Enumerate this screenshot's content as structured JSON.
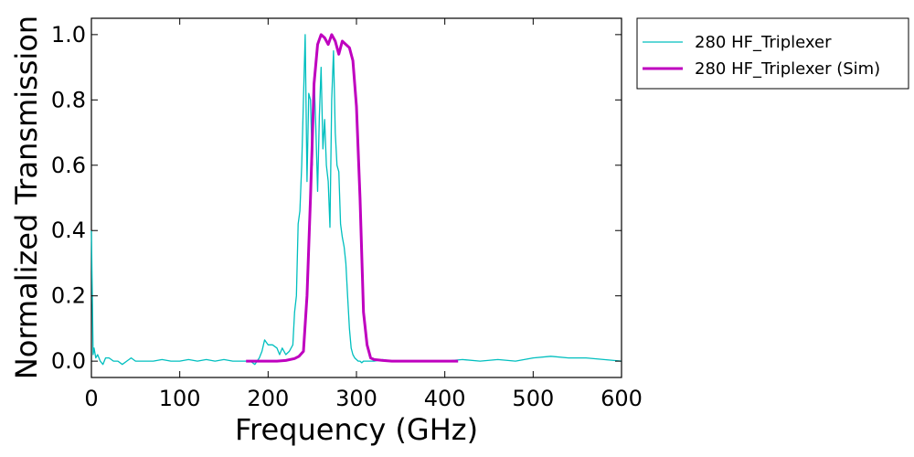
{
  "chart_data": {
    "type": "line",
    "title": "",
    "xlabel": "Frequency (GHz)",
    "ylabel": "Normalized Transmission",
    "xlim": [
      0,
      600
    ],
    "ylim": [
      -0.05,
      1.05
    ],
    "xticks": [
      0,
      100,
      200,
      300,
      400,
      500,
      600
    ],
    "xtick_labels": [
      "0",
      "100",
      "200",
      "300",
      "400",
      "500",
      "600"
    ],
    "yticks": [
      0.0,
      0.2,
      0.4,
      0.6,
      0.8,
      1.0
    ],
    "ytick_labels": [
      "0.0",
      "0.2",
      "0.4",
      "0.6",
      "0.8",
      "1.0"
    ],
    "grid": false,
    "legend_position": "outside-top-right",
    "series": [
      {
        "name": "280 HF_Triplexer",
        "color": "#00bfbf",
        "style": "thin",
        "x": [
          0,
          1,
          2,
          3,
          5,
          7,
          10,
          13,
          16,
          20,
          25,
          30,
          35,
          40,
          45,
          50,
          60,
          70,
          80,
          90,
          100,
          110,
          120,
          130,
          140,
          150,
          160,
          170,
          180,
          185,
          190,
          193,
          196,
          200,
          205,
          210,
          213,
          216,
          220,
          224,
          228,
          230,
          232,
          234,
          236,
          238,
          240,
          242,
          244,
          246,
          248,
          250,
          252,
          254,
          256,
          258,
          260,
          262,
          264,
          266,
          268,
          270,
          272,
          274,
          276,
          278,
          280,
          282,
          284,
          286,
          288,
          290,
          292,
          294,
          296,
          298,
          300,
          302,
          304,
          306,
          308,
          310,
          315,
          320,
          330,
          340,
          350,
          360,
          380,
          400,
          420,
          440,
          460,
          480,
          500,
          520,
          540,
          560,
          580,
          600
        ],
        "y": [
          0.4,
          0.2,
          0.02,
          0.04,
          0.01,
          0.02,
          0.0,
          -0.01,
          0.01,
          0.01,
          0.0,
          0.0,
          -0.01,
          0.0,
          0.01,
          0.0,
          0.0,
          0.0,
          0.005,
          0.0,
          0.0,
          0.005,
          0.0,
          0.005,
          0.0,
          0.005,
          0.0,
          0.0,
          0.0,
          -0.01,
          0.01,
          0.03,
          0.065,
          0.05,
          0.05,
          0.04,
          0.02,
          0.04,
          0.02,
          0.03,
          0.05,
          0.15,
          0.2,
          0.42,
          0.46,
          0.6,
          0.8,
          1.0,
          0.55,
          0.82,
          0.8,
          0.6,
          0.87,
          0.72,
          0.52,
          0.75,
          0.9,
          0.65,
          0.74,
          0.6,
          0.55,
          0.41,
          0.8,
          0.95,
          0.7,
          0.6,
          0.58,
          0.42,
          0.38,
          0.35,
          0.3,
          0.2,
          0.1,
          0.04,
          0.02,
          0.01,
          0.005,
          0.0,
          0.0,
          -0.005,
          0.0,
          0.0,
          0.0,
          0.0,
          0.005,
          0.0,
          0.0,
          0.0,
          0.0,
          0.0,
          0.005,
          0.0,
          0.005,
          0.0,
          0.01,
          0.015,
          0.01,
          0.01,
          0.005,
          0.0
        ]
      },
      {
        "name": "280 HF_Triplexer (Sim)",
        "color": "#bf00bf",
        "style": "thick",
        "x": [
          175,
          200,
          210,
          220,
          230,
          235,
          240,
          244,
          248,
          252,
          256,
          260,
          264,
          268,
          272,
          276,
          280,
          284,
          288,
          292,
          296,
          300,
          304,
          308,
          312,
          316,
          320,
          330,
          340,
          360,
          380,
          400,
          415
        ],
        "y": [
          0.0,
          0.0,
          0.0,
          0.002,
          0.008,
          0.015,
          0.03,
          0.2,
          0.5,
          0.85,
          0.97,
          1.0,
          0.99,
          0.97,
          1.0,
          0.98,
          0.94,
          0.98,
          0.97,
          0.96,
          0.92,
          0.78,
          0.5,
          0.15,
          0.05,
          0.01,
          0.005,
          0.002,
          0.0,
          0.0,
          0.0,
          0.0,
          0.0
        ]
      }
    ]
  }
}
